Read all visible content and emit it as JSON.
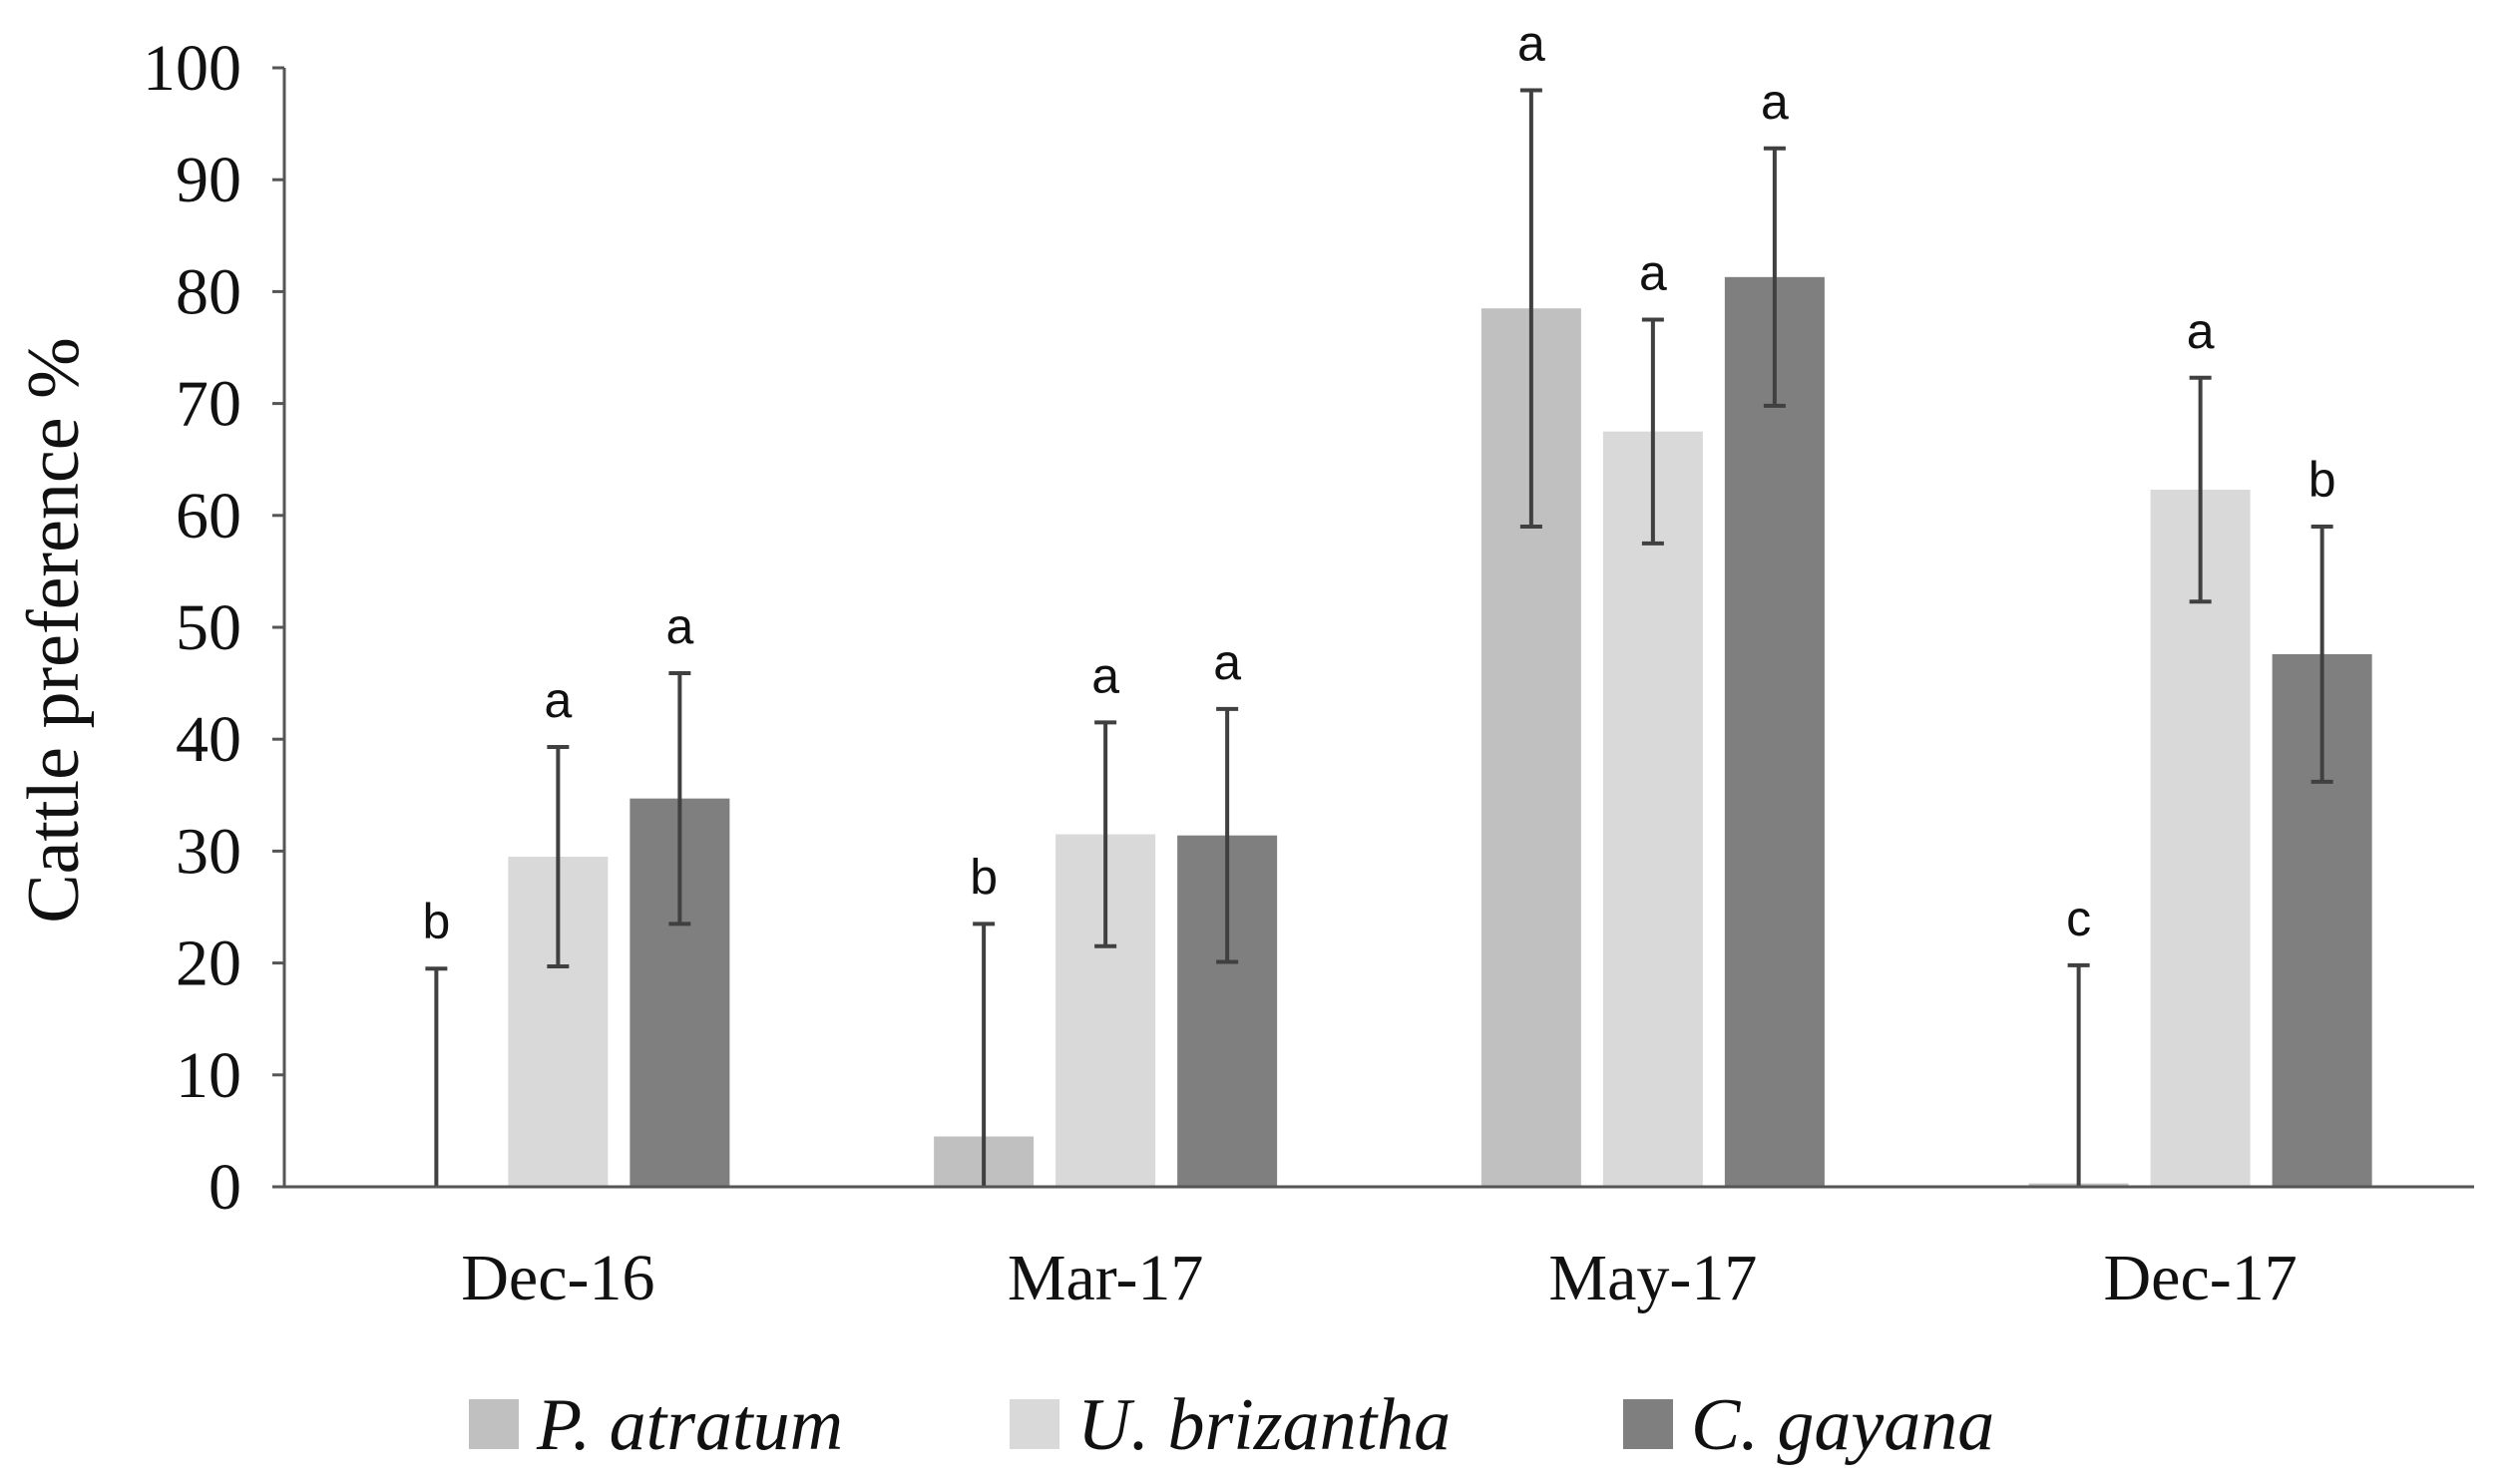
{
  "chart_data": {
    "type": "bar",
    "title": "",
    "xlabel": "",
    "ylabel": "Cattle preference %",
    "ylim": [
      0,
      100
    ],
    "yticks": [
      "0",
      "10",
      "20",
      "30",
      "40",
      "50",
      "60",
      "70",
      "80",
      "90",
      "100"
    ],
    "categories": [
      "Dec-16",
      "Mar-17",
      "May-17",
      "Dec-17"
    ],
    "legend_position": "bottom",
    "grid": false,
    "series": [
      {
        "name": "P. atratum",
        "color": "#c0c0c0",
        "values": [
          0,
          4.5,
          78.5,
          0.3
        ],
        "error": [
          19.5,
          19,
          19.5,
          19.5
        ],
        "letters": [
          "b",
          "b",
          "a",
          "c"
        ]
      },
      {
        "name": "U. brizantha",
        "color": "#d9d9d9",
        "values": [
          29.5,
          31.5,
          67.5,
          62.3
        ],
        "error": [
          9.8,
          10,
          10,
          10
        ],
        "letters": [
          "a",
          "a",
          "a",
          "a"
        ]
      },
      {
        "name": "C. gayana",
        "color": "#7f7f7f",
        "values": [
          34.7,
          31.4,
          81.3,
          47.6
        ],
        "error": [
          11.2,
          11.3,
          11.5,
          11.4
        ],
        "letters": [
          "a",
          "a",
          "a",
          "b"
        ]
      }
    ]
  }
}
